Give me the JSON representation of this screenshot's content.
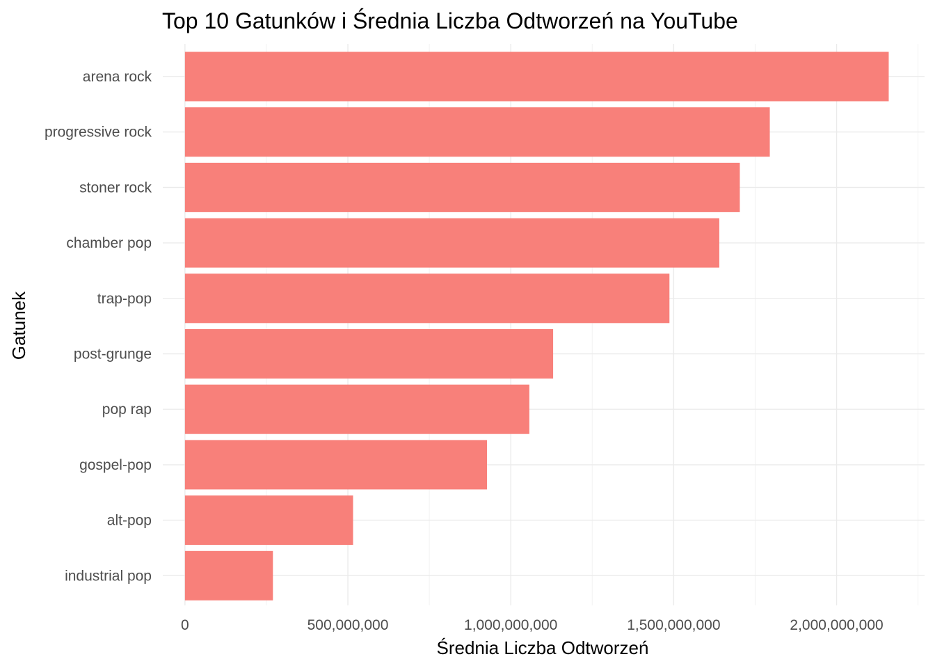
{
  "chart_data": {
    "type": "bar",
    "orientation": "horizontal",
    "title": "Top 10 Gatunków i Średnia Liczba Odtworzeń na YouTube",
    "xlabel": "Średnia Liczba Odtworzeń",
    "ylabel": "Gatunek",
    "categories": [
      "arena rock",
      "progressive rock",
      "stoner rock",
      "chamber pop",
      "trap-pop",
      "post-grunge",
      "pop rap",
      "gospel-pop",
      "alt-pop",
      "industrial pop"
    ],
    "values": [
      2160000000,
      1795000000,
      1703000000,
      1640000000,
      1487000000,
      1130000000,
      1057000000,
      927000000,
      516000000,
      270000000
    ],
    "xlim": [
      -68000000,
      2270000000
    ],
    "xticks": [
      0,
      500000000,
      1000000000,
      1500000000,
      2000000000
    ],
    "xtick_labels": [
      "0",
      "500,000,000",
      "1,000,000,000",
      "1,500,000,000",
      "2,000,000,000"
    ],
    "bar_color": "#F8807A",
    "grid": true,
    "legend": "none"
  }
}
